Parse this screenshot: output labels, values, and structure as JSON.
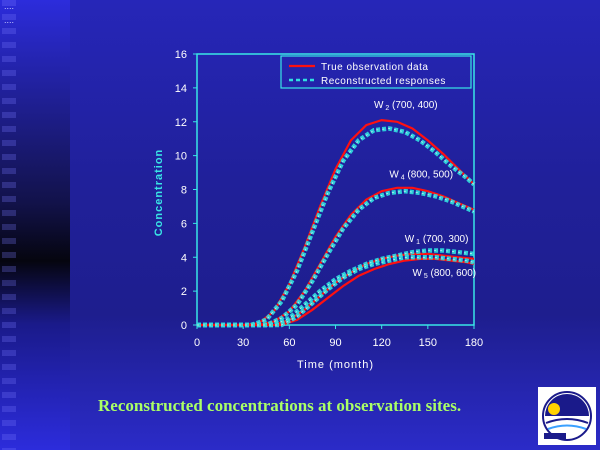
{
  "slide": {
    "caption": "Reconstructed concentrations at observation sites.",
    "dots_top": "....",
    "dots_second": "...."
  },
  "chart_data": {
    "type": "line",
    "title": "",
    "xlabel": "Time (month)",
    "ylabel": "Concentration",
    "xlim": [
      0,
      180
    ],
    "ylim": [
      0,
      16
    ],
    "x_ticks": [
      0,
      30,
      60,
      90,
      120,
      150,
      180
    ],
    "y_ticks": [
      0,
      2,
      4,
      6,
      8,
      10,
      12,
      14,
      16
    ],
    "grid": false,
    "legend_position": "top-right",
    "legend": [
      {
        "label": "True observation data",
        "style": "solid",
        "color": "#ff1010"
      },
      {
        "label": "Reconstructed responses",
        "style": "dashed",
        "color": "#30e0e0"
      }
    ],
    "annotations": [
      {
        "base": "W",
        "sub": "2",
        "rest": " (700, 400)",
        "x": 115,
        "y": 12.8
      },
      {
        "base": "W",
        "sub": "4",
        "rest": " (800, 500)",
        "x": 125,
        "y": 8.7
      },
      {
        "base": "W",
        "sub": "1",
        "rest": " (700, 300)",
        "x": 135,
        "y": 4.9
      },
      {
        "base": "W",
        "sub": "5",
        "rest": " (800, 600)",
        "x": 140,
        "y": 2.9
      }
    ],
    "series": [
      {
        "name": "W2 (700, 400)",
        "kind": "true",
        "color": "#ff1010",
        "x": [
          0,
          30,
          40,
          50,
          60,
          70,
          80,
          90,
          100,
          110,
          120,
          130,
          140,
          150,
          160,
          170,
          180
        ],
        "y": [
          0,
          0,
          0.1,
          0.8,
          2.4,
          4.6,
          7.0,
          9.2,
          10.9,
          11.8,
          12.1,
          12.0,
          11.6,
          10.9,
          10.1,
          9.2,
          8.3
        ]
      },
      {
        "name": "W2 (700, 400)",
        "kind": "reconstructed",
        "color": "#30e0e0",
        "x": [
          0,
          35,
          45,
          55,
          65,
          75,
          85,
          95,
          105,
          115,
          125,
          135,
          145,
          155,
          165,
          175,
          180
        ],
        "y": [
          0,
          0,
          0.3,
          1.4,
          3.2,
          5.5,
          7.8,
          9.7,
          10.9,
          11.5,
          11.6,
          11.4,
          10.9,
          10.2,
          9.4,
          8.7,
          8.3
        ]
      },
      {
        "name": "W4 (800, 500)",
        "kind": "true",
        "color": "#ff1010",
        "x": [
          0,
          40,
          50,
          60,
          70,
          80,
          90,
          100,
          110,
          120,
          130,
          140,
          150,
          160,
          170,
          180
        ],
        "y": [
          0,
          0,
          0.2,
          0.8,
          2.0,
          3.6,
          5.2,
          6.5,
          7.4,
          7.9,
          8.1,
          8.1,
          7.9,
          7.6,
          7.2,
          6.8
        ]
      },
      {
        "name": "W4 (800, 500)",
        "kind": "reconstructed",
        "color": "#30e0e0",
        "x": [
          0,
          45,
          55,
          65,
          75,
          85,
          95,
          105,
          115,
          125,
          135,
          145,
          155,
          165,
          175,
          180
        ],
        "y": [
          0,
          0,
          0.4,
          1.2,
          2.6,
          4.2,
          5.7,
          6.8,
          7.5,
          7.8,
          7.9,
          7.8,
          7.6,
          7.3,
          6.9,
          6.7
        ]
      },
      {
        "name": "W1 (700, 300)",
        "kind": "true",
        "color": "#ff1010",
        "x": [
          0,
          50,
          60,
          70,
          80,
          90,
          100,
          110,
          120,
          130,
          140,
          150,
          160,
          170,
          180
        ],
        "y": [
          0,
          0,
          0.3,
          0.9,
          1.7,
          2.5,
          3.1,
          3.6,
          3.9,
          4.1,
          4.2,
          4.2,
          4.1,
          4.0,
          3.9
        ]
      },
      {
        "name": "W1 (700, 300)",
        "kind": "reconstructed",
        "color": "#30e0e0",
        "x": [
          0,
          50,
          60,
          70,
          80,
          90,
          100,
          110,
          120,
          130,
          140,
          150,
          160,
          170,
          180
        ],
        "y": [
          0,
          0,
          0.4,
          1.2,
          2.0,
          2.7,
          3.2,
          3.6,
          3.9,
          4.1,
          4.3,
          4.4,
          4.4,
          4.3,
          4.2
        ]
      },
      {
        "name": "W5 (800, 600)",
        "kind": "true",
        "color": "#ff1010",
        "x": [
          0,
          55,
          65,
          75,
          85,
          95,
          105,
          115,
          125,
          135,
          145,
          155,
          165,
          175,
          180
        ],
        "y": [
          0,
          0,
          0.3,
          0.9,
          1.6,
          2.3,
          2.9,
          3.3,
          3.6,
          3.8,
          3.9,
          3.9,
          3.8,
          3.7,
          3.6
        ]
      },
      {
        "name": "W5 (800, 600)",
        "kind": "reconstructed",
        "color": "#30e0e0",
        "x": [
          0,
          55,
          65,
          75,
          85,
          95,
          105,
          115,
          125,
          135,
          145,
          155,
          165,
          175,
          180
        ],
        "y": [
          0,
          0,
          0.5,
          1.3,
          2.1,
          2.8,
          3.3,
          3.6,
          3.8,
          4.0,
          4.0,
          4.0,
          3.9,
          3.8,
          3.7
        ]
      }
    ]
  }
}
